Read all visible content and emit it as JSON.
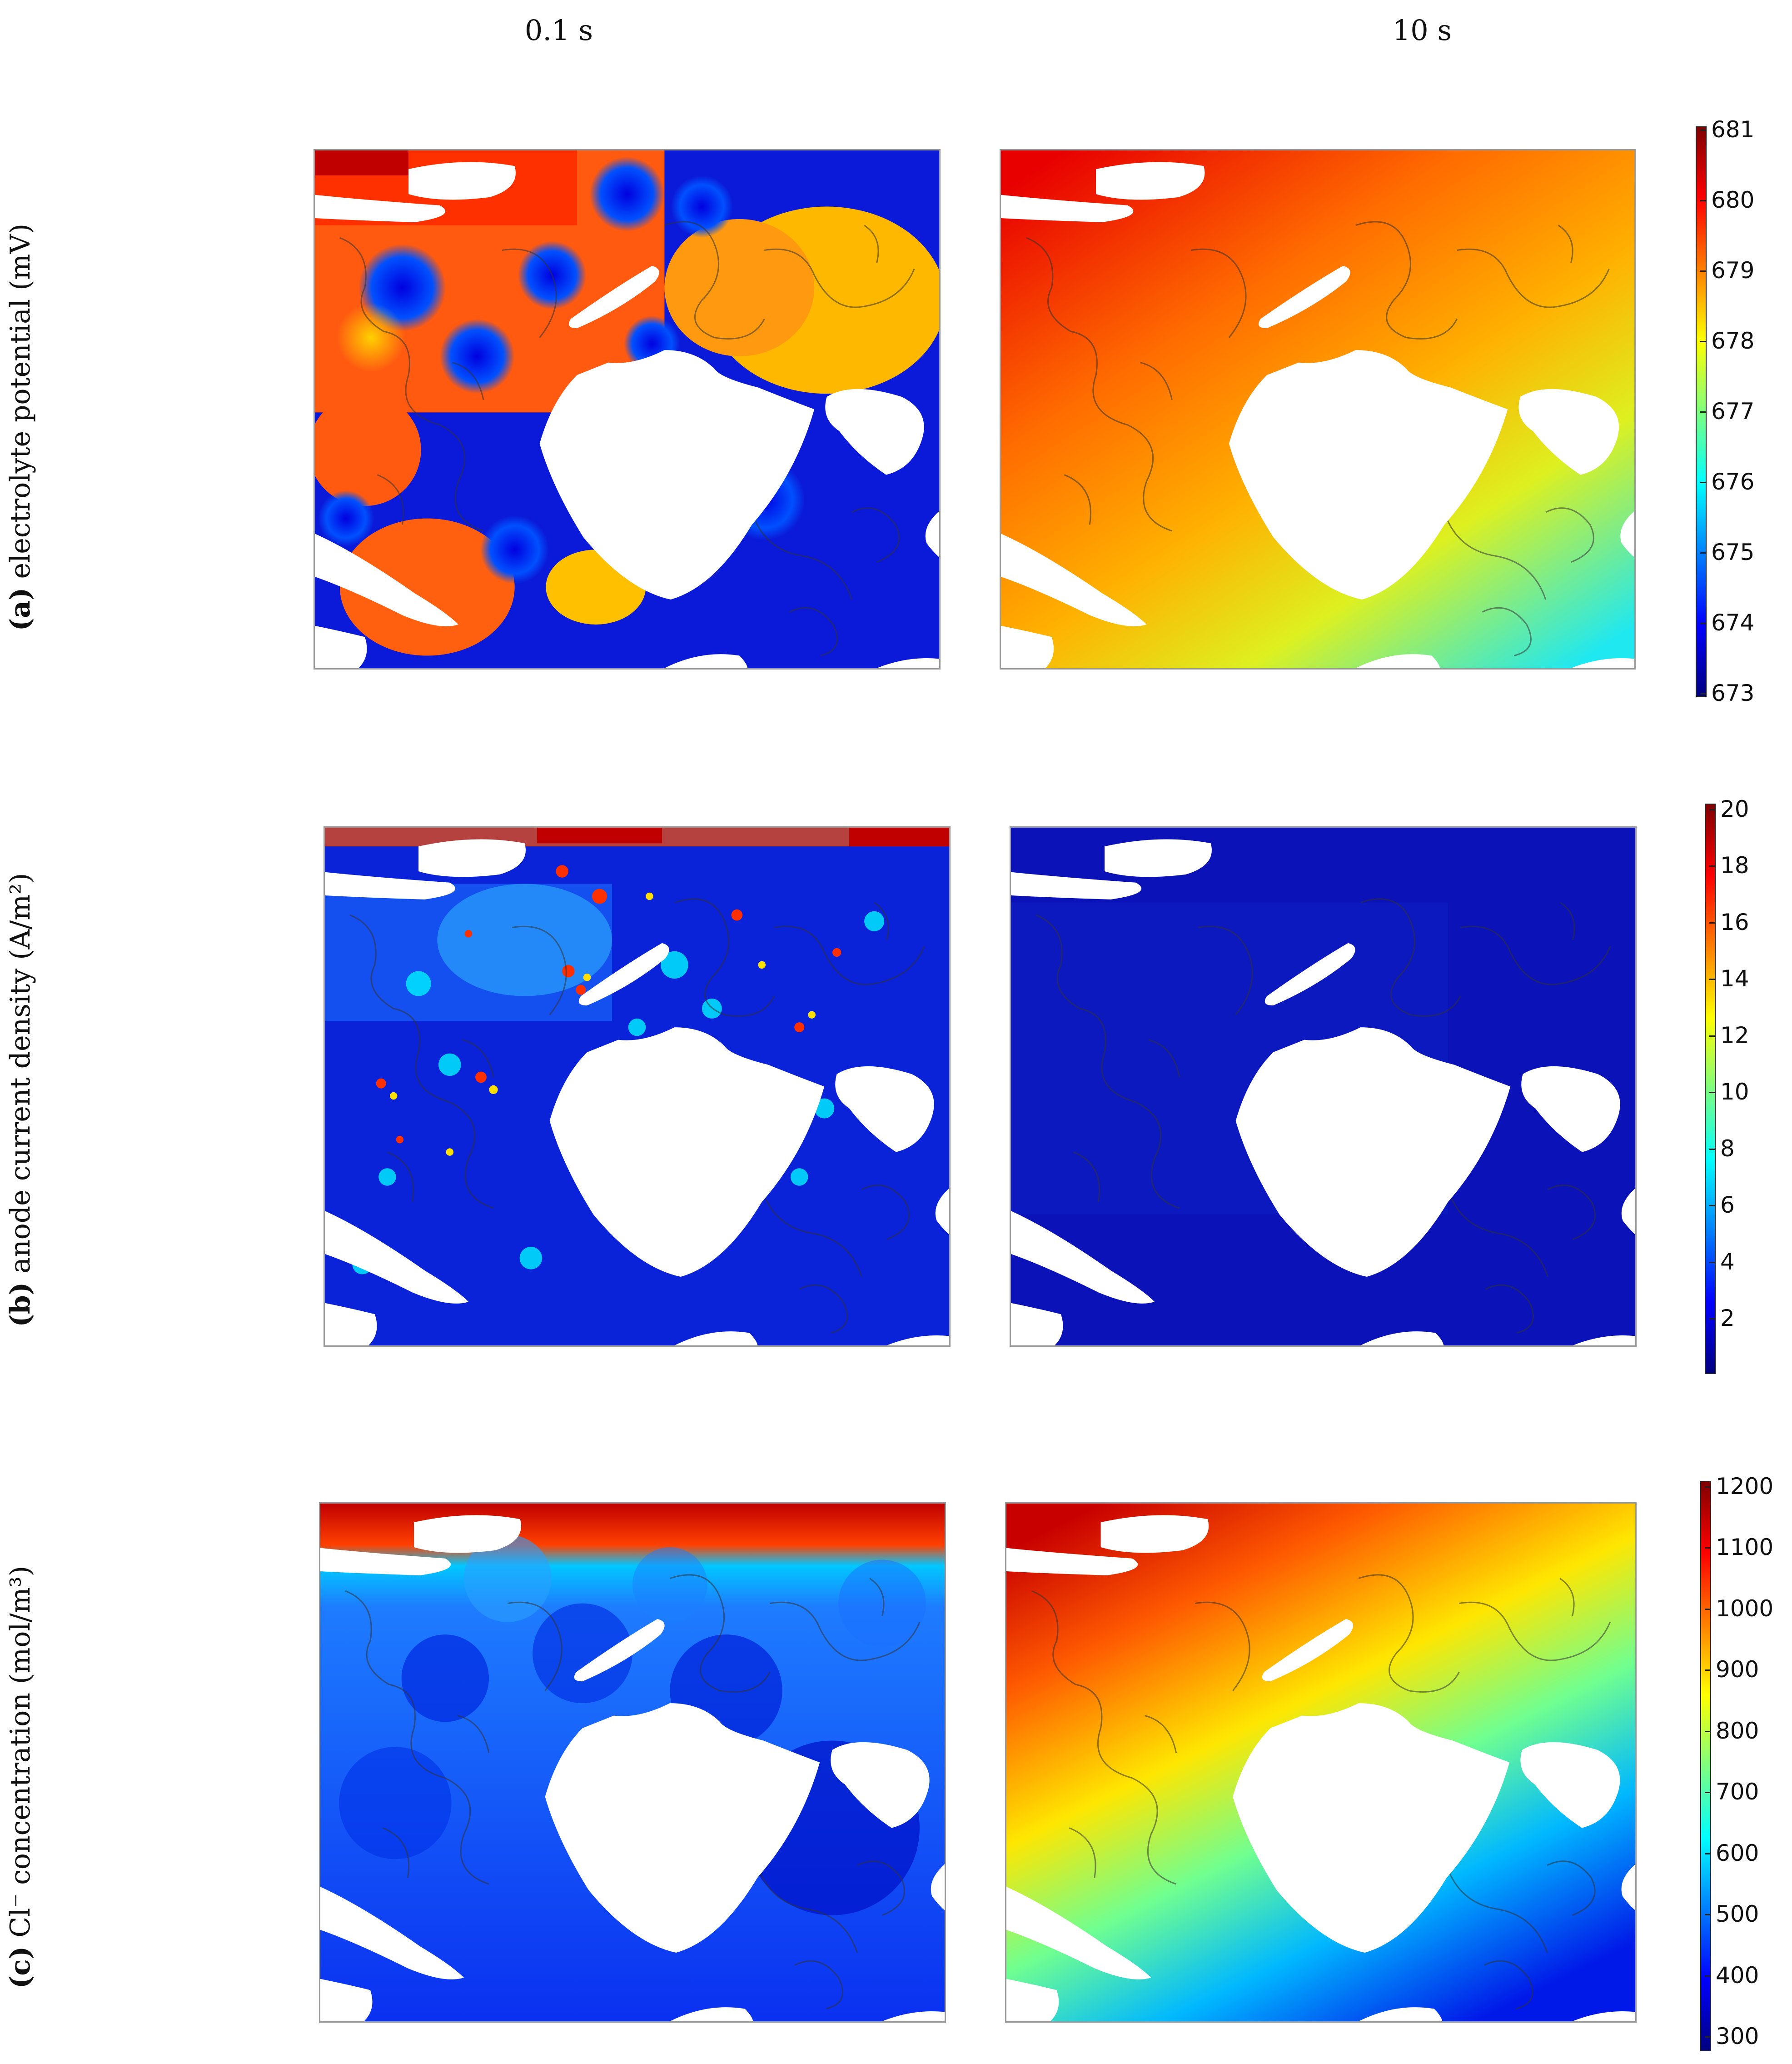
{
  "columns": [
    "0.1 s",
    "10 s"
  ],
  "rows": [
    {
      "label_letter": "(a)",
      "label_text": " electrolyte potential (mV)",
      "colorbar_ticks": [
        "681",
        "680",
        "679",
        "678",
        "677",
        "676",
        "675",
        "674",
        "673"
      ],
      "panel_left_mean": "mixed",
      "panel_right_mean": "gradient"
    },
    {
      "label_letter": "(b)",
      "label_text": " anode current density (A/m²)",
      "colorbar_ticks": [
        "20",
        "18",
        "16",
        "14",
        "12",
        "10",
        "8",
        "6",
        "4",
        "2"
      ],
      "panel_left_mean": "speckled",
      "panel_right_mean": "uniform-low"
    },
    {
      "label_letter": "(c)",
      "label_text": " Cl⁻ concentration (mol/m³)",
      "colorbar_ticks": [
        "1200",
        "1100",
        "1000",
        "900",
        "800",
        "700",
        "600",
        "500",
        "400",
        "300"
      ],
      "panel_left_mean": "low",
      "panel_right_mean": "gradient"
    }
  ],
  "colormap": [
    "#00007f",
    "#0000ff",
    "#007fff",
    "#00ffff",
    "#7fff7f",
    "#ffff00",
    "#ff7f00",
    "#ff0000",
    "#7f0000"
  ]
}
